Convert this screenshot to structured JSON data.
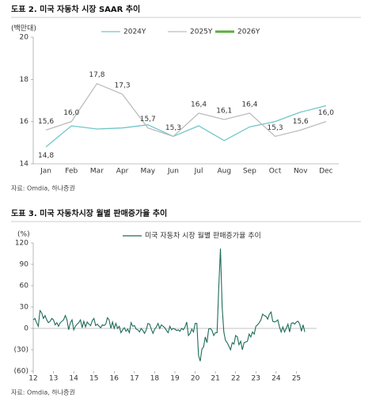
{
  "chart_data": [
    {
      "type": "line",
      "title": "도표 2. 미국 자동차 시장 SAAR 추이",
      "y_label": "(백만대)",
      "source": "자료: Omdia, 하나증권",
      "categories": [
        "Jan",
        "Feb",
        "Mar",
        "Apr",
        "May",
        "Jun",
        "Jul",
        "Aug",
        "Sep",
        "Oct",
        "Nov",
        "Dec"
      ],
      "ylim": [
        14,
        20
      ],
      "yticks": [
        14,
        16,
        18,
        20
      ],
      "series": [
        {
          "name": "2024Y",
          "color": "#6fc6c9",
          "values": [
            14.8,
            15.8,
            15.65,
            15.7,
            15.85,
            15.3,
            15.8,
            15.1,
            15.75,
            16.0,
            16.45,
            16.75
          ],
          "value_labels": [
            "14,8",
            null,
            null,
            null,
            null,
            null,
            null,
            null,
            null,
            null,
            null,
            null
          ]
        },
        {
          "name": "2025Y",
          "color": "#bdbdbd",
          "values": [
            15.6,
            16.0,
            17.8,
            17.3,
            15.7,
            15.3,
            16.4,
            16.1,
            16.4,
            15.3,
            15.6,
            16.0
          ],
          "value_labels": [
            "15,6",
            "16,0",
            "17,8",
            "17,3",
            "15,7",
            "15,3",
            "16,4",
            "16,1",
            "16,4",
            "15,3",
            "15,6",
            "16,0"
          ]
        },
        {
          "name": "2026Y",
          "color": "#5aae3c",
          "values": [
            null,
            null,
            null,
            null,
            null,
            null,
            null,
            null,
            null,
            null,
            null,
            null
          ]
        }
      ]
    },
    {
      "type": "line",
      "title": "도표 3. 미국 자동차시장 월별 판매증가율 추이",
      "y_label": "(%)",
      "source": "자료: Omdia, 하나증권",
      "xlim": [
        0,
        168
      ],
      "xticks": [
        {
          "value": 0,
          "label": "12"
        },
        {
          "value": 12,
          "label": "13"
        },
        {
          "value": 24,
          "label": "14"
        },
        {
          "value": 36,
          "label": "15"
        },
        {
          "value": 48,
          "label": "16"
        },
        {
          "value": 60,
          "label": "17"
        },
        {
          "value": 72,
          "label": "18"
        },
        {
          "value": 84,
          "label": "19"
        },
        {
          "value": 96,
          "label": "20"
        },
        {
          "value": 108,
          "label": "21"
        },
        {
          "value": 120,
          "label": "22"
        },
        {
          "value": 132,
          "label": "23"
        },
        {
          "value": 144,
          "label": "24"
        },
        {
          "value": 156,
          "label": "25"
        }
      ],
      "ylim": [
        -60,
        120
      ],
      "yticks": [
        {
          "value": -60,
          "label": "(60)"
        },
        {
          "value": -30,
          "label": "(30)"
        },
        0,
        30,
        60,
        90,
        120
      ],
      "series": [
        {
          "name": "미국 자동차 시장 월별 판매증가율 추이",
          "color": "#1d6b58",
          "values": [
            12,
            14,
            8,
            3,
            25,
            22,
            14,
            18,
            12,
            8,
            10,
            14,
            12,
            5,
            8,
            3,
            8,
            10,
            12,
            18,
            12,
            -2,
            8,
            12,
            -2,
            3,
            6,
            8,
            12,
            1,
            10,
            2,
            9,
            6,
            4,
            11,
            14,
            4,
            6,
            3,
            1,
            5,
            4,
            6,
            15,
            12,
            0,
            9,
            0,
            7,
            0,
            3,
            -6,
            -2,
            1,
            -4,
            -1,
            -6,
            8,
            3,
            4,
            -1,
            -2,
            -5,
            0,
            -3,
            -7,
            -2,
            7,
            6,
            -1,
            -7,
            -1,
            2,
            7,
            0,
            5,
            3,
            1,
            -3,
            -6,
            3,
            -2,
            0,
            -1,
            -3,
            -2,
            -4,
            0,
            -2,
            2,
            9,
            -10,
            -7,
            -1,
            -5,
            7,
            7,
            -38,
            -46,
            -29,
            -26,
            -12,
            -20,
            -1,
            0,
            -3,
            -10,
            -6,
            -6,
            58,
            112,
            30,
            -5,
            -17,
            -20,
            -25,
            -30,
            -20,
            -22,
            -10,
            -12,
            -23,
            -18,
            -30,
            -20,
            -19,
            -18,
            -8,
            -12,
            -5,
            -8,
            3,
            5,
            8,
            12,
            20,
            18,
            17,
            13,
            20,
            23,
            10,
            9,
            10,
            12,
            2,
            -5,
            2,
            -5,
            0,
            6,
            -5,
            7,
            8,
            6,
            9,
            10,
            6,
            -4,
            5,
            -5
          ]
        }
      ]
    }
  ]
}
